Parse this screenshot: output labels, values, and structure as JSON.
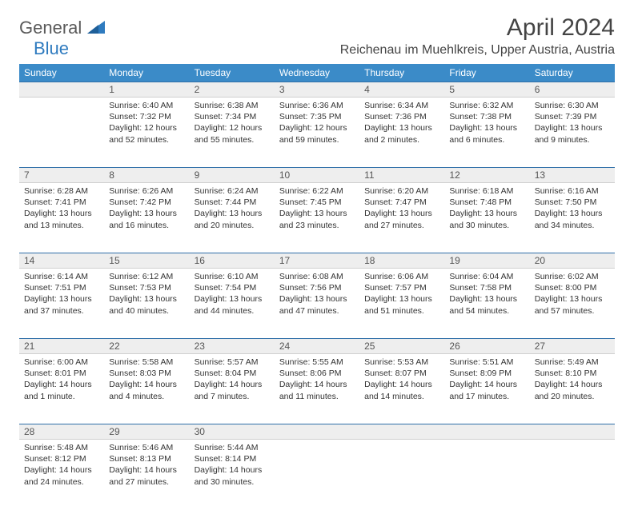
{
  "logo": {
    "general": "General",
    "blue": "Blue"
  },
  "title": "April 2024",
  "location": "Reichenau im Muehlkreis, Upper Austria, Austria",
  "colors": {
    "header_bg": "#3b8bc8",
    "header_text": "#ffffff",
    "daynum_bg": "#eeeeee",
    "daynum_border_top": "#2f6fa8",
    "text": "#333333",
    "logo_gray": "#5a5a5a",
    "logo_blue": "#2f7bbf"
  },
  "day_headers": [
    "Sunday",
    "Monday",
    "Tuesday",
    "Wednesday",
    "Thursday",
    "Friday",
    "Saturday"
  ],
  "weeks": [
    {
      "nums": [
        "",
        "1",
        "2",
        "3",
        "4",
        "5",
        "6"
      ],
      "cells": [
        {
          "sunrise": "",
          "sunset": "",
          "daylight": ""
        },
        {
          "sunrise": "Sunrise: 6:40 AM",
          "sunset": "Sunset: 7:32 PM",
          "daylight": "Daylight: 12 hours and 52 minutes."
        },
        {
          "sunrise": "Sunrise: 6:38 AM",
          "sunset": "Sunset: 7:34 PM",
          "daylight": "Daylight: 12 hours and 55 minutes."
        },
        {
          "sunrise": "Sunrise: 6:36 AM",
          "sunset": "Sunset: 7:35 PM",
          "daylight": "Daylight: 12 hours and 59 minutes."
        },
        {
          "sunrise": "Sunrise: 6:34 AM",
          "sunset": "Sunset: 7:36 PM",
          "daylight": "Daylight: 13 hours and 2 minutes."
        },
        {
          "sunrise": "Sunrise: 6:32 AM",
          "sunset": "Sunset: 7:38 PM",
          "daylight": "Daylight: 13 hours and 6 minutes."
        },
        {
          "sunrise": "Sunrise: 6:30 AM",
          "sunset": "Sunset: 7:39 PM",
          "daylight": "Daylight: 13 hours and 9 minutes."
        }
      ]
    },
    {
      "nums": [
        "7",
        "8",
        "9",
        "10",
        "11",
        "12",
        "13"
      ],
      "cells": [
        {
          "sunrise": "Sunrise: 6:28 AM",
          "sunset": "Sunset: 7:41 PM",
          "daylight": "Daylight: 13 hours and 13 minutes."
        },
        {
          "sunrise": "Sunrise: 6:26 AM",
          "sunset": "Sunset: 7:42 PM",
          "daylight": "Daylight: 13 hours and 16 minutes."
        },
        {
          "sunrise": "Sunrise: 6:24 AM",
          "sunset": "Sunset: 7:44 PM",
          "daylight": "Daylight: 13 hours and 20 minutes."
        },
        {
          "sunrise": "Sunrise: 6:22 AM",
          "sunset": "Sunset: 7:45 PM",
          "daylight": "Daylight: 13 hours and 23 minutes."
        },
        {
          "sunrise": "Sunrise: 6:20 AM",
          "sunset": "Sunset: 7:47 PM",
          "daylight": "Daylight: 13 hours and 27 minutes."
        },
        {
          "sunrise": "Sunrise: 6:18 AM",
          "sunset": "Sunset: 7:48 PM",
          "daylight": "Daylight: 13 hours and 30 minutes."
        },
        {
          "sunrise": "Sunrise: 6:16 AM",
          "sunset": "Sunset: 7:50 PM",
          "daylight": "Daylight: 13 hours and 34 minutes."
        }
      ]
    },
    {
      "nums": [
        "14",
        "15",
        "16",
        "17",
        "18",
        "19",
        "20"
      ],
      "cells": [
        {
          "sunrise": "Sunrise: 6:14 AM",
          "sunset": "Sunset: 7:51 PM",
          "daylight": "Daylight: 13 hours and 37 minutes."
        },
        {
          "sunrise": "Sunrise: 6:12 AM",
          "sunset": "Sunset: 7:53 PM",
          "daylight": "Daylight: 13 hours and 40 minutes."
        },
        {
          "sunrise": "Sunrise: 6:10 AM",
          "sunset": "Sunset: 7:54 PM",
          "daylight": "Daylight: 13 hours and 44 minutes."
        },
        {
          "sunrise": "Sunrise: 6:08 AM",
          "sunset": "Sunset: 7:56 PM",
          "daylight": "Daylight: 13 hours and 47 minutes."
        },
        {
          "sunrise": "Sunrise: 6:06 AM",
          "sunset": "Sunset: 7:57 PM",
          "daylight": "Daylight: 13 hours and 51 minutes."
        },
        {
          "sunrise": "Sunrise: 6:04 AM",
          "sunset": "Sunset: 7:58 PM",
          "daylight": "Daylight: 13 hours and 54 minutes."
        },
        {
          "sunrise": "Sunrise: 6:02 AM",
          "sunset": "Sunset: 8:00 PM",
          "daylight": "Daylight: 13 hours and 57 minutes."
        }
      ]
    },
    {
      "nums": [
        "21",
        "22",
        "23",
        "24",
        "25",
        "26",
        "27"
      ],
      "cells": [
        {
          "sunrise": "Sunrise: 6:00 AM",
          "sunset": "Sunset: 8:01 PM",
          "daylight": "Daylight: 14 hours and 1 minute."
        },
        {
          "sunrise": "Sunrise: 5:58 AM",
          "sunset": "Sunset: 8:03 PM",
          "daylight": "Daylight: 14 hours and 4 minutes."
        },
        {
          "sunrise": "Sunrise: 5:57 AM",
          "sunset": "Sunset: 8:04 PM",
          "daylight": "Daylight: 14 hours and 7 minutes."
        },
        {
          "sunrise": "Sunrise: 5:55 AM",
          "sunset": "Sunset: 8:06 PM",
          "daylight": "Daylight: 14 hours and 11 minutes."
        },
        {
          "sunrise": "Sunrise: 5:53 AM",
          "sunset": "Sunset: 8:07 PM",
          "daylight": "Daylight: 14 hours and 14 minutes."
        },
        {
          "sunrise": "Sunrise: 5:51 AM",
          "sunset": "Sunset: 8:09 PM",
          "daylight": "Daylight: 14 hours and 17 minutes."
        },
        {
          "sunrise": "Sunrise: 5:49 AM",
          "sunset": "Sunset: 8:10 PM",
          "daylight": "Daylight: 14 hours and 20 minutes."
        }
      ]
    },
    {
      "nums": [
        "28",
        "29",
        "30",
        "",
        "",
        "",
        ""
      ],
      "cells": [
        {
          "sunrise": "Sunrise: 5:48 AM",
          "sunset": "Sunset: 8:12 PM",
          "daylight": "Daylight: 14 hours and 24 minutes."
        },
        {
          "sunrise": "Sunrise: 5:46 AM",
          "sunset": "Sunset: 8:13 PM",
          "daylight": "Daylight: 14 hours and 27 minutes."
        },
        {
          "sunrise": "Sunrise: 5:44 AM",
          "sunset": "Sunset: 8:14 PM",
          "daylight": "Daylight: 14 hours and 30 minutes."
        },
        {
          "sunrise": "",
          "sunset": "",
          "daylight": ""
        },
        {
          "sunrise": "",
          "sunset": "",
          "daylight": ""
        },
        {
          "sunrise": "",
          "sunset": "",
          "daylight": ""
        },
        {
          "sunrise": "",
          "sunset": "",
          "daylight": ""
        }
      ]
    }
  ]
}
